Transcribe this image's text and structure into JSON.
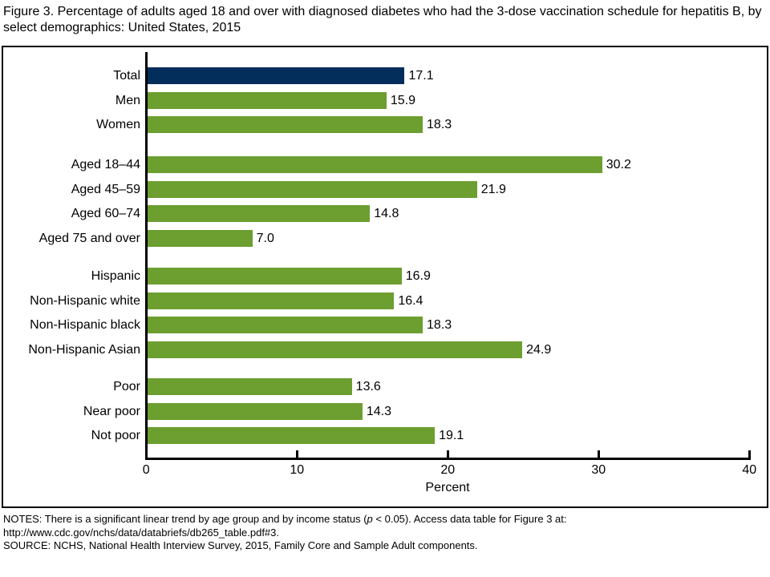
{
  "title": "Figure 3. Percentage of adults aged 18 and over with diagnosed diabetes who had the 3-dose vaccination schedule for hepatitis B, by select demographics: United States, 2015",
  "chart_data": {
    "type": "bar",
    "orientation": "horizontal",
    "xlabel": "Percent",
    "xlim": [
      0,
      40
    ],
    "xticks": [
      "0",
      "10",
      "20",
      "30",
      "40"
    ],
    "grid": false,
    "legend": "none",
    "colors": {
      "highlight": "#032E5C",
      "default": "#6C9E30"
    },
    "groups": [
      {
        "name": "overall",
        "items": [
          {
            "label": "Total",
            "value": 17.1,
            "value_label": "17.1",
            "highlight": true
          },
          {
            "label": "Men",
            "value": 15.9,
            "value_label": "15.9",
            "highlight": false
          },
          {
            "label": "Women",
            "value": 18.3,
            "value_label": "18.3",
            "highlight": false
          }
        ]
      },
      {
        "name": "age",
        "items": [
          {
            "label": "Aged 18–44",
            "value": 30.2,
            "value_label": "30.2",
            "highlight": false
          },
          {
            "label": "Aged 45–59",
            "value": 21.9,
            "value_label": "21.9",
            "highlight": false
          },
          {
            "label": "Aged 60–74",
            "value": 14.8,
            "value_label": "14.8",
            "highlight": false
          },
          {
            "label": "Aged 75 and over",
            "value": 7.0,
            "value_label": "7.0",
            "highlight": false
          }
        ]
      },
      {
        "name": "race-ethnicity",
        "items": [
          {
            "label": "Hispanic",
            "value": 16.9,
            "value_label": "16.9",
            "highlight": false
          },
          {
            "label": "Non-Hispanic white",
            "value": 16.4,
            "value_label": "16.4",
            "highlight": false
          },
          {
            "label": "Non-Hispanic black",
            "value": 18.3,
            "value_label": "18.3",
            "highlight": false
          },
          {
            "label": "Non-Hispanic Asian",
            "value": 24.9,
            "value_label": "24.9",
            "highlight": false
          }
        ]
      },
      {
        "name": "poverty",
        "items": [
          {
            "label": "Poor",
            "value": 13.6,
            "value_label": "13.6",
            "highlight": false
          },
          {
            "label": "Near poor",
            "value": 14.3,
            "value_label": "14.3",
            "highlight": false
          },
          {
            "label": "Not poor",
            "value": 19.1,
            "value_label": "19.1",
            "highlight": false
          }
        ]
      }
    ]
  },
  "notes": {
    "line1_pre": "NOTES: There is a significant linear trend by age group and by income status (",
    "line1_italic": "p",
    "line1_post": " < 0.05). Access data table for Figure 3 at:",
    "line2": "http://www.cdc.gov/nchs/data/databriefs/db265_table.pdf#3.",
    "line3": "SOURCE: NCHS, National Health Interview Survey, 2015, Family Core and Sample Adult components."
  }
}
